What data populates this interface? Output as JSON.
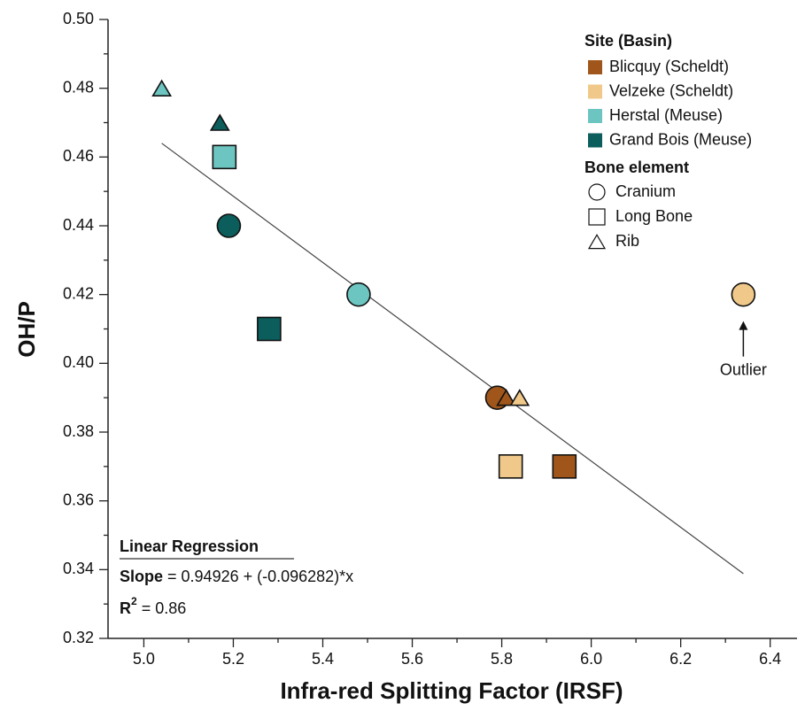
{
  "chart_data": {
    "type": "scatter",
    "x_label": "Infra-red Splitting Factor (IRSF)",
    "y_label": "OH/P",
    "xlim": [
      4.92,
      6.46
    ],
    "xticks": [
      {
        "value": 5.0,
        "label": "5.0"
      },
      5.2,
      5.4,
      5.6,
      5.8,
      {
        "value": 6.0,
        "label": "6.0"
      },
      6.2,
      6.4
    ],
    "ylim": [
      0.32,
      0.5
    ],
    "yticks": [
      0.32,
      0.34,
      0.36,
      0.38,
      {
        "value": 0.4,
        "label": "0.40"
      },
      0.42,
      0.44,
      0.46,
      0.48,
      {
        "value": 0.5,
        "label": "0.50"
      }
    ],
    "legend_title": "Site (Basin)",
    "series": [
      {
        "name": "Blicquy (Scheldt)",
        "color": "#a0561a",
        "x": [
          5.79,
          5.81,
          5.94
        ],
        "values": [
          0.39,
          0.39,
          0.37
        ],
        "markers": [
          "circle",
          "triangle",
          "square"
        ]
      },
      {
        "name": "Velzeke (Scheldt)",
        "color": "#f0c98a",
        "x": [
          5.84,
          5.82,
          6.34
        ],
        "values": [
          0.39,
          0.37,
          0.42
        ],
        "markers": [
          "triangle",
          "square",
          "circle"
        ]
      },
      {
        "name": "Herstal (Meuse)",
        "color": "#6cc5c0",
        "x": [
          5.04,
          5.18,
          5.48
        ],
        "values": [
          0.48,
          0.46,
          0.42
        ],
        "markers": [
          "triangle",
          "square",
          "circle"
        ]
      },
      {
        "name": "Grand Bois (Meuse)",
        "color": "#0c5e5c",
        "x": [
          5.17,
          5.19,
          5.28
        ],
        "values": [
          0.47,
          0.44,
          0.41
        ],
        "markers": [
          "triangle",
          "circle",
          "square"
        ]
      }
    ],
    "shape_legend_title": "Bone element",
    "shape_legend": [
      {
        "name": "Cranium",
        "marker": "circle"
      },
      {
        "name": "Long Bone",
        "marker": "square"
      },
      {
        "name": "Rib",
        "marker": "triangle"
      }
    ],
    "regression": {
      "title": "Linear Regression",
      "intercept": 0.94926,
      "slope": -0.096282,
      "x": [
        5.04,
        6.34
      ],
      "slope_label": "Slope",
      "slope_text": " = 0.94926 + (-0.096282)*x",
      "r2_label": "R",
      "r2_sup": "2",
      "r2_text": " = 0.86"
    },
    "annotation": {
      "text": "Outlier",
      "x": 6.34,
      "y": 0.403
    }
  }
}
